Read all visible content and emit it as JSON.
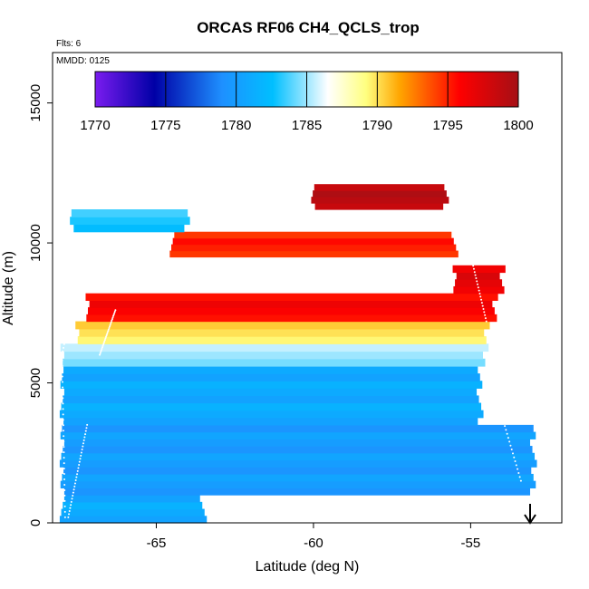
{
  "chart_data": {
    "type": "heatmap",
    "title": "ORCAS RF06 CH4_QCLS_trop",
    "annotations": {
      "flights": "Flts: 6",
      "date": "MMDD: 0125"
    },
    "xlabel": "Latitude (deg N)",
    "ylabel": "Altitude (m)",
    "xlim": [
      -68.3,
      -52.1
    ],
    "ylim": [
      0,
      16800
    ],
    "x_ticks": [
      -65,
      -60,
      -55
    ],
    "x_tick_labels": [
      "-65",
      "-60",
      "-55"
    ],
    "y_ticks": [
      0,
      5000,
      10000,
      15000
    ],
    "y_tick_labels": [
      "0",
      "5000",
      "10000",
      "15000"
    ],
    "colorbar": {
      "min": 1770,
      "max": 1800,
      "ticks": [
        1770,
        1775,
        1780,
        1785,
        1790,
        1795,
        1800
      ],
      "tick_labels": [
        "1770",
        "1775",
        "1780",
        "1785",
        "1790",
        "1795",
        "1800"
      ],
      "colors": [
        "#7a1cef",
        "#0000a6",
        "#1e90ff",
        "#00bfff",
        "#ffffff",
        "#ffff80",
        "#ffa500",
        "#ff0000",
        "#a50f15"
      ]
    },
    "value_bands": [
      {
        "alt_min": 0,
        "alt_max": 1000,
        "lat_min": -68.0,
        "lat_max": -63.5,
        "value": 1781
      },
      {
        "alt_min": 1000,
        "alt_max": 3500,
        "lat_min": -68.0,
        "lat_max": -53.0,
        "value": 1780
      },
      {
        "alt_min": 3500,
        "alt_max": 5600,
        "lat_min": -68.0,
        "lat_max": -54.7,
        "value": 1781
      },
      {
        "alt_min": 5600,
        "alt_max": 6400,
        "lat_min": -68.0,
        "lat_max": -54.5,
        "value": 1785
      },
      {
        "alt_min": 6400,
        "alt_max": 7200,
        "lat_min": -67.5,
        "lat_max": -54.5,
        "value": 1790
      },
      {
        "alt_min": 7200,
        "alt_max": 8200,
        "lat_min": -67.2,
        "lat_max": -54.2,
        "value": 1796
      },
      {
        "alt_min": 8200,
        "alt_max": 9200,
        "lat_min": -55.5,
        "lat_max": -54.0,
        "value": 1797
      },
      {
        "alt_min": 9500,
        "alt_max": 10400,
        "lat_min": -64.5,
        "lat_max": -55.5,
        "value": 1795
      },
      {
        "alt_min": 10400,
        "alt_max": 11200,
        "lat_min": -67.7,
        "lat_max": -64.0,
        "value": 1783
      },
      {
        "alt_min": 11200,
        "alt_max": 12100,
        "lat_min": -60.0,
        "lat_max": -55.8,
        "value": 1799
      }
    ],
    "flight_track_note": "dotted white flight track along ascents/descents near -68 and -53.5 deg N",
    "arrow_marker_lat": -53.0
  }
}
